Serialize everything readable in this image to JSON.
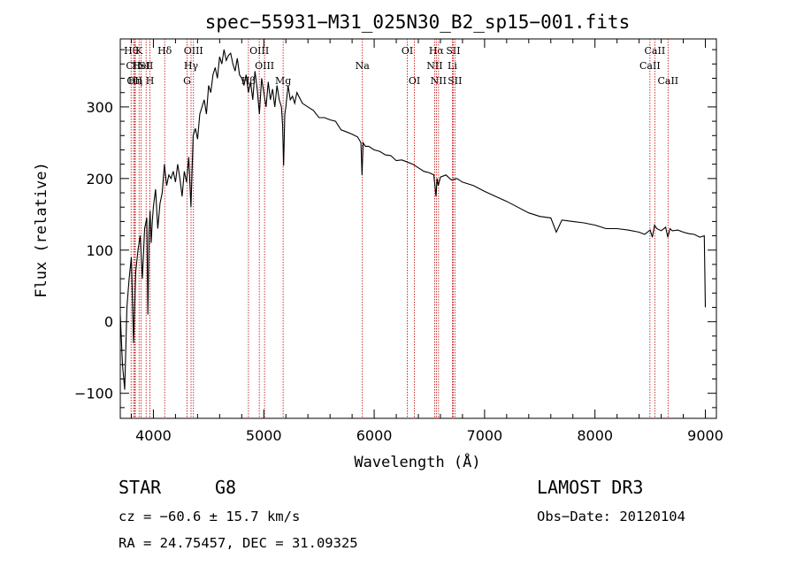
{
  "chart_data": {
    "type": "line",
    "title": "spec−55931−M31_025N30_B2_sp15−001.fits",
    "xlabel": "Wavelength (Å)",
    "ylabel": "Flux (relative)",
    "xlim": [
      3700,
      9100
    ],
    "ylim": [
      -135,
      395
    ],
    "xticks": [
      4000,
      5000,
      6000,
      7000,
      8000,
      9000
    ],
    "yticks": [
      -100,
      0,
      100,
      200,
      300
    ],
    "grid": false,
    "series": [
      {
        "name": "spectrum",
        "x": [
          3700,
          3720,
          3740,
          3760,
          3780,
          3800,
          3820,
          3840,
          3860,
          3880,
          3900,
          3920,
          3940,
          3950,
          3960,
          3970,
          3980,
          3990,
          4000,
          4020,
          4040,
          4060,
          4080,
          4100,
          4120,
          4140,
          4160,
          4180,
          4200,
          4220,
          4240,
          4260,
          4280,
          4300,
          4320,
          4340,
          4360,
          4380,
          4400,
          4420,
          4440,
          4460,
          4480,
          4500,
          4520,
          4540,
          4560,
          4580,
          4600,
          4620,
          4640,
          4660,
          4680,
          4700,
          4720,
          4740,
          4760,
          4780,
          4800,
          4820,
          4840,
          4860,
          4880,
          4900,
          4920,
          4940,
          4960,
          4980,
          5000,
          5020,
          5040,
          5060,
          5080,
          5100,
          5120,
          5140,
          5160,
          5170,
          5180,
          5190,
          5200,
          5220,
          5240,
          5260,
          5280,
          5300,
          5350,
          5400,
          5450,
          5500,
          5550,
          5600,
          5650,
          5700,
          5750,
          5800,
          5850,
          5880,
          5890,
          5900,
          5920,
          5950,
          6000,
          6050,
          6100,
          6150,
          6200,
          6250,
          6300,
          6350,
          6400,
          6450,
          6500,
          6540,
          6560,
          6570,
          6580,
          6600,
          6650,
          6700,
          6750,
          6800,
          6900,
          7000,
          7100,
          7200,
          7300,
          7400,
          7500,
          7600,
          7650,
          7700,
          7800,
          7900,
          8000,
          8100,
          8200,
          8300,
          8400,
          8450,
          8500,
          8520,
          8540,
          8560,
          8600,
          8640,
          8660,
          8680,
          8700,
          8750,
          8800,
          8850,
          8900,
          8950,
          8990,
          9000
        ],
        "values": [
          10,
          -60,
          -95,
          20,
          60,
          90,
          -30,
          70,
          100,
          120,
          60,
          130,
          145,
          10,
          125,
          155,
          110,
          140,
          160,
          185,
          130,
          165,
          180,
          220,
          190,
          205,
          200,
          210,
          195,
          220,
          200,
          175,
          210,
          195,
          230,
          160,
          260,
          270,
          255,
          290,
          300,
          310,
          290,
          330,
          320,
          345,
          355,
          340,
          370,
          360,
          380,
          365,
          372,
          375,
          360,
          350,
          368,
          345,
          340,
          330,
          345,
          320,
          335,
          310,
          350,
          325,
          290,
          340,
          320,
          300,
          335,
          310,
          325,
          300,
          330,
          310,
          300,
          275,
          218,
          290,
          300,
          330,
          310,
          315,
          305,
          320,
          305,
          300,
          295,
          285,
          285,
          282,
          280,
          268,
          265,
          262,
          258,
          250,
          205,
          250,
          245,
          245,
          240,
          238,
          233,
          232,
          225,
          226,
          223,
          220,
          215,
          210,
          208,
          205,
          175,
          200,
          190,
          202,
          205,
          198,
          200,
          195,
          190,
          182,
          175,
          168,
          160,
          152,
          147,
          145,
          125,
          142,
          140,
          138,
          135,
          130,
          130,
          128,
          125,
          122,
          128,
          118,
          135,
          130,
          127,
          132,
          118,
          130,
          127,
          128,
          125,
          123,
          122,
          118,
          120,
          20
        ]
      }
    ],
    "line_markers": [
      {
        "label": "Hθ",
        "x": 3798,
        "row": 1
      },
      {
        "label": "CII",
        "x": 3820,
        "row": 2
      },
      {
        "label": "OII",
        "x": 3830,
        "row": 3
      },
      {
        "label": "Hη",
        "x": 3836,
        "row": 3
      },
      {
        "label": "K",
        "x": 3870,
        "row": 1
      },
      {
        "label": "HeI",
        "x": 3889,
        "row": 2
      },
      {
        "label": "SII",
        "x": 3934,
        "row": 2
      },
      {
        "label": "H",
        "x": 3969,
        "row": 3
      },
      {
        "label": "Hδ",
        "x": 4102,
        "row": 1
      },
      {
        "label": "OIII",
        "x": 4363,
        "row": 1
      },
      {
        "label": "Hγ",
        "x": 4341,
        "row": 2
      },
      {
        "label": "G",
        "x": 4305,
        "row": 3
      },
      {
        "label": "OIII",
        "x": 4959,
        "row": 1
      },
      {
        "label": "OIII",
        "x": 5007,
        "row": 2
      },
      {
        "label": "Hβ",
        "x": 4861,
        "row": 3
      },
      {
        "label": "Mg",
        "x": 5175,
        "row": 3
      },
      {
        "label": "Na",
        "x": 5893,
        "row": 2
      },
      {
        "label": "OI",
        "x": 6300,
        "row": 1
      },
      {
        "label": "OI",
        "x": 6364,
        "row": 3
      },
      {
        "label": "Hα",
        "x": 6563,
        "row": 1
      },
      {
        "label": "SII",
        "x": 6716,
        "row": 1
      },
      {
        "label": "NII",
        "x": 6548,
        "row": 2
      },
      {
        "label": "Li",
        "x": 6708,
        "row": 2
      },
      {
        "label": "NII",
        "x": 6583,
        "row": 3
      },
      {
        "label": "SII",
        "x": 6731,
        "row": 3
      },
      {
        "label": "CaII",
        "x": 8542,
        "row": 1
      },
      {
        "label": "CaII",
        "x": 8498,
        "row": 2
      },
      {
        "label": "CaII",
        "x": 8662,
        "row": 3
      }
    ]
  },
  "info": {
    "class": "STAR",
    "subclass": "G8",
    "survey": "LAMOST DR3",
    "cz": "cz = −60.6 ± 15.7 km/s",
    "obs_date": "Obs−Date: 20120104",
    "coords": "RA =  24.75457, DEC =  31.09325"
  }
}
